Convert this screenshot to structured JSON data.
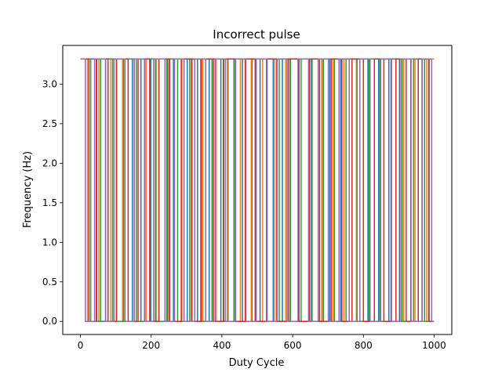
{
  "chart_data": {
    "type": "line",
    "title": "Incorrect pulse",
    "xlabel": "Duty Cycle",
    "ylabel": "Frequency (Hz)",
    "xlim": [
      -50,
      1050
    ],
    "ylim": [
      -0.166,
      3.49
    ],
    "xticks": [
      0,
      200,
      400,
      600,
      800,
      1000
    ],
    "xtick_labels": [
      "0",
      "200",
      "400",
      "600",
      "800",
      "1000"
    ],
    "yticks": [
      0.0,
      0.5,
      1.0,
      1.5,
      2.0,
      2.5,
      3.0
    ],
    "ytick_labels": [
      "0.0",
      "0.5",
      "1.0",
      "1.5",
      "2.0",
      "2.5",
      "3.0"
    ],
    "grid": false,
    "legend": "none",
    "high_value": 3.32,
    "low_value": 0.0,
    "series": [
      {
        "color": "#1f77b4",
        "edges": [
          0,
          46,
          71,
          102,
          147,
          171,
          199,
          246,
          263,
          302,
          331,
          364,
          397,
          416,
          458,
          485,
          508,
          545,
          571,
          593,
          616,
          653,
          683,
          705,
          736,
          781,
          813,
          843,
          872,
          902,
          934,
          966,
          985,
          1000
        ]
      },
      {
        "color": "#ff7f0e",
        "edges": [
          0,
          20,
          52,
          86,
          119,
          152,
          186,
          215,
          250,
          287,
          316,
          346,
          384,
          418,
          452,
          483,
          515,
          549,
          580,
          616,
          648,
          682,
          714,
          745,
          780,
          816,
          846,
          880,
          914,
          946,
          979,
          1000
        ]
      },
      {
        "color": "#2ca02c",
        "edges": [
          0,
          29,
          57,
          91,
          122,
          158,
          182,
          212,
          244,
          275,
          309,
          340,
          372,
          404,
          434,
          466,
          497,
          528,
          562,
          594,
          624,
          655,
          687,
          718,
          751,
          782,
          816,
          847,
          878,
          910,
          942,
          973,
          1000
        ]
      },
      {
        "color": "#d62728",
        "edges": [
          0,
          24,
          45,
          78,
          102,
          135,
          163,
          196,
          222,
          252,
          285,
          314,
          342,
          376,
          405,
          438,
          466,
          494,
          526,
          555,
          588,
          618,
          648,
          676,
          709,
          739,
          768,
          800,
          831,
          858,
          892,
          921,
          955,
          986,
          1000
        ]
      },
      {
        "color": "#9467bd",
        "edges": [
          0,
          14,
          40,
          71,
          95,
          126,
          152,
          181,
          207,
          239,
          266,
          293,
          323,
          354,
          381,
          410,
          439,
          468,
          497,
          527,
          556,
          584,
          615,
          645,
          672,
          701,
          731,
          760,
          790,
          819,
          849,
          879,
          906,
          935,
          966,
          993,
          1000
        ]
      }
    ]
  }
}
